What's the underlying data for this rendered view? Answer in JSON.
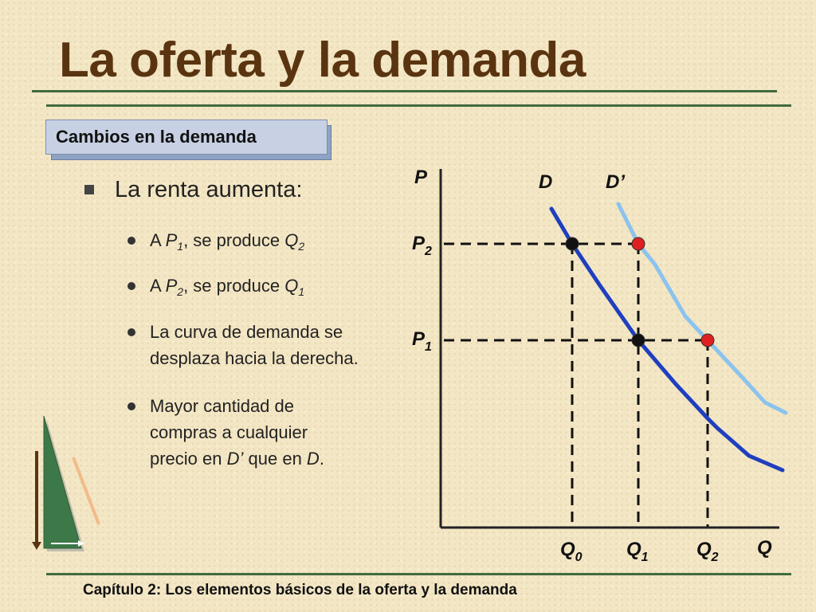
{
  "slide": {
    "title": "La oferta y la demanda",
    "section_label": "Cambios en la demanda",
    "main_bullet": "La renta aumenta:",
    "sub_bullets": [
      {
        "id": "b1",
        "parts": [
          {
            "t": "A "
          },
          {
            "t": "P",
            "i": true
          },
          {
            "sub": "1"
          },
          {
            "t": ", se produce "
          },
          {
            "t": "Q",
            "i": true
          },
          {
            "sub": "2"
          }
        ]
      },
      {
        "id": "b2",
        "parts": [
          {
            "t": "A "
          },
          {
            "t": "P",
            "i": true
          },
          {
            "sub": "2"
          },
          {
            "t": ", se produce "
          },
          {
            "t": "Q",
            "i": true
          },
          {
            "sub": "1"
          }
        ]
      },
      {
        "id": "b3",
        "lines": [
          [
            {
              "t": "La curva de demanda se"
            }
          ],
          [
            {
              "t": "desplaza hacia la derecha."
            }
          ]
        ]
      },
      {
        "id": "b4",
        "lines": [
          [
            {
              "t": "Mayor cantidad de"
            }
          ],
          [
            {
              "t": "compras a cualquier"
            }
          ],
          [
            {
              "t": "precio en "
            },
            {
              "t": "D’",
              "i": true
            },
            {
              "t": " que en "
            },
            {
              "t": "D",
              "i": true
            },
            {
              "t": "."
            }
          ]
        ]
      }
    ],
    "footer": "Capítulo 2: Los elementos básicos de la oferta y la demanda"
  },
  "chart_data": {
    "type": "line",
    "axes": {
      "y_label": "P",
      "x_label": "Q"
    },
    "curves": [
      {
        "name": "D",
        "color": "#1f3fbf"
      },
      {
        "name": "D’",
        "color": "#8cc3ee"
      }
    ],
    "price_labels": [
      {
        "main": "P",
        "sub": "2"
      },
      {
        "main": "P",
        "sub": "1"
      }
    ],
    "quantity_labels": [
      {
        "main": "Q",
        "sub": "0"
      },
      {
        "main": "Q",
        "sub": "1"
      },
      {
        "main": "Q",
        "sub": "2"
      }
    ],
    "points": [
      {
        "curve": "D",
        "price": "P2",
        "quantity": "Q0",
        "color": "#111111"
      },
      {
        "curve": "D",
        "price": "P1",
        "quantity": "Q1",
        "color": "#111111"
      },
      {
        "curve": "D’",
        "price": "P2",
        "quantity": "Q1",
        "color": "#e02020"
      },
      {
        "curve": "D’",
        "price": "P1",
        "quantity": "Q2",
        "color": "#e02020"
      }
    ],
    "grid": false
  },
  "colors": {
    "title": "#5a3410",
    "rule": "#3f6b3f",
    "label_bg": "#c7d1e3"
  }
}
